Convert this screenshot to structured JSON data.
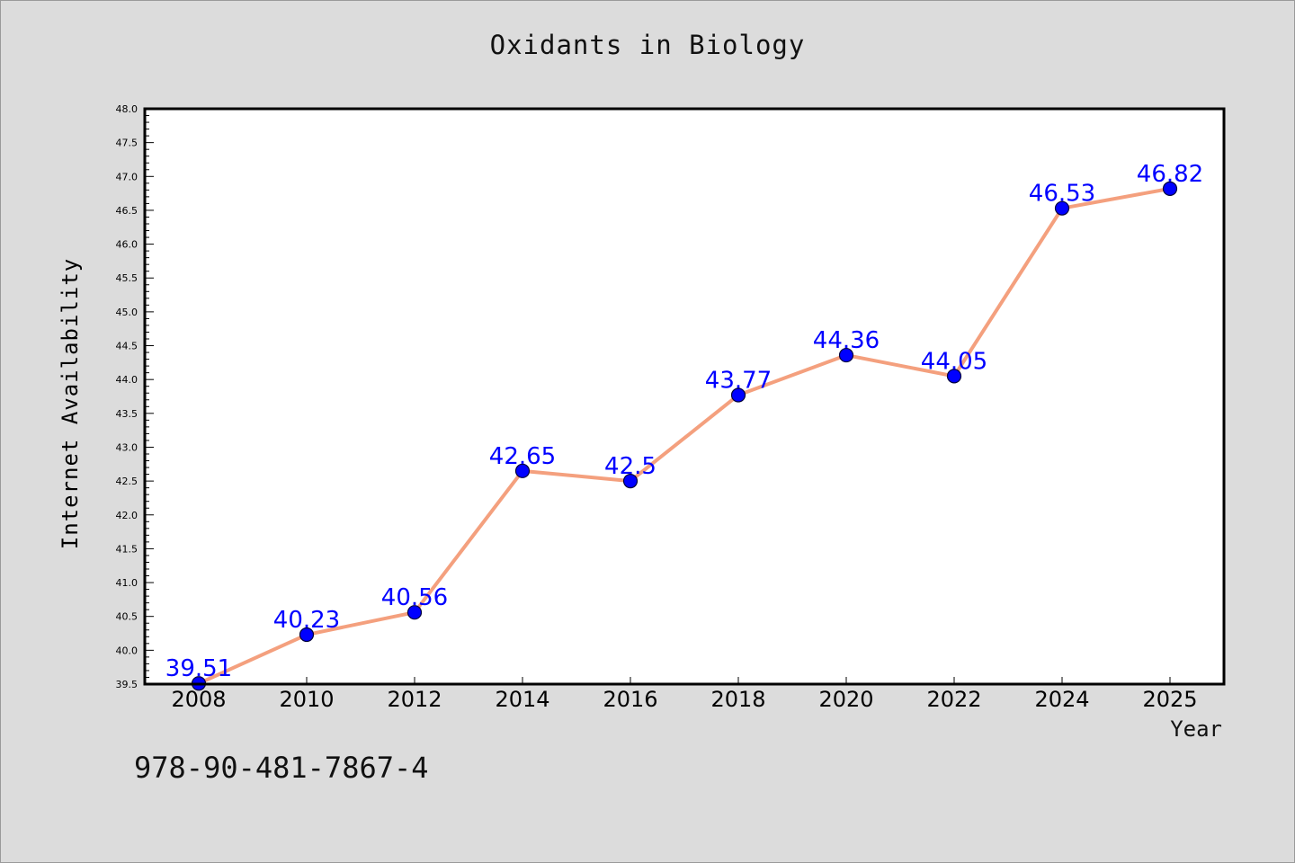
{
  "chart_data": {
    "type": "line",
    "title": "Oxidants in Biology",
    "xlabel": "Year",
    "ylabel": "Internet Availability",
    "categories": [
      "2008",
      "2010",
      "2012",
      "2014",
      "2016",
      "2018",
      "2020",
      "2022",
      "2024",
      "2025"
    ],
    "values": [
      39.51,
      40.23,
      40.56,
      42.65,
      42.5,
      43.77,
      44.36,
      44.05,
      46.53,
      46.82
    ],
    "data_labels": [
      "39.51",
      "40.23",
      "40.56",
      "42.65",
      "42.5",
      "43.77",
      "44.36",
      "44.05",
      "46.53",
      "46.82"
    ],
    "ylim": [
      39.5,
      48.0
    ],
    "yticks": [
      39.5,
      40.0,
      40.5,
      41.0,
      41.5,
      42.0,
      42.5,
      43.0,
      43.5,
      44.0,
      44.5,
      45.0,
      45.5,
      46.0,
      46.5,
      47.0,
      47.5,
      48.0
    ],
    "ytick_labels": [
      "39.5",
      "40.0",
      "40.5",
      "41.0",
      "41.5",
      "42.0",
      "42.5",
      "43.0",
      "43.5",
      "44.0",
      "44.5",
      "45.0",
      "45.5",
      "46.0",
      "46.5",
      "47.0",
      "47.5",
      "48.0"
    ],
    "grid": false,
    "line_color": "#f4a07e",
    "marker_color": "#0000ff",
    "label_color": "#0000ff"
  },
  "footer": {
    "isbn": "978-90-481-7867-4"
  }
}
